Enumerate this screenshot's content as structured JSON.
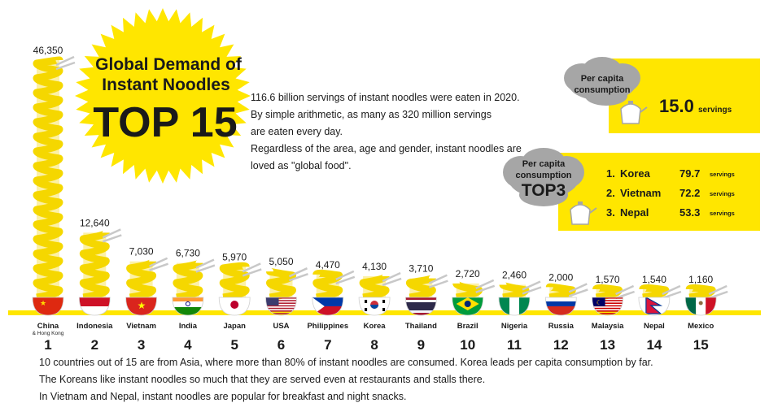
{
  "title": {
    "line1": "Global Demand of",
    "line2": "Instant Noodles",
    "line3": "TOP 15"
  },
  "description": [
    "116.6 billion servings of instant noodles were eaten in 2020.",
    "By simple arithmetic, as many as 320 million servings",
    "are eaten every day.",
    "Regardless of the area, age and gender, instant noodles are",
    "loved as \"global food\"."
  ],
  "per_capita": {
    "label_line1": "Per capita",
    "label_line2": "consumption",
    "value": "15.0",
    "unit": "servings"
  },
  "top3": {
    "label_line1": "Per capita",
    "label_line2": "consumption",
    "label_line3": "TOP3",
    "items": [
      {
        "rank": "1.",
        "country": "Korea",
        "value": "79.7",
        "unit": "servings"
      },
      {
        "rank": "2.",
        "country": "Vietnam",
        "value": "72.2",
        "unit": "servings"
      },
      {
        "rank": "3.",
        "country": "Nepal",
        "value": "53.3",
        "unit": "servings"
      }
    ]
  },
  "footer": [
    "10 countries out of 15 are from Asia, where more than 80% of instant noodles are consumed. Korea leads per capita consumption by far.",
    "The Koreans like instant noodles so much that they are served even at restaurants and stalls there.",
    "In Vietnam and Nepal, instant noodles are popular for breakfast and night snacks."
  ],
  "colors": {
    "yellow": "#ffe600",
    "noodle": "#f5d800",
    "text": "#1a1a1a",
    "cloud": "#a6a6a6"
  },
  "chart_data": {
    "type": "bar",
    "title": "Global Demand of Instant Noodles TOP 15",
    "categories": [
      "China",
      "Indonesia",
      "Vietnam",
      "India",
      "Japan",
      "USA",
      "Philippines",
      "Korea",
      "Thailand",
      "Brazil",
      "Nigeria",
      "Russia",
      "Malaysia",
      "Nepal",
      "Mexico"
    ],
    "category_sublabels": [
      "& Hong Kong",
      "",
      "",
      "",
      "",
      "",
      "",
      "",
      "",
      "",
      "",
      "",
      "",
      "",
      ""
    ],
    "ranks": [
      "1",
      "2",
      "3",
      "4",
      "5",
      "6",
      "7",
      "8",
      "9",
      "10",
      "11",
      "12",
      "13",
      "14",
      "15"
    ],
    "values": [
      46350,
      12640,
      7030,
      6730,
      5970,
      5050,
      4470,
      4130,
      3710,
      2720,
      2460,
      2000,
      1570,
      1540,
      1160
    ],
    "value_labels": [
      "46,350",
      "12,640",
      "7,030",
      "6,730",
      "5,970",
      "5,050",
      "4,470",
      "4,130",
      "3,710",
      "2,720",
      "2,460",
      "2,000",
      "1,570",
      "1,540",
      "1,160"
    ],
    "flags": [
      "china-flag",
      "indonesia-flag",
      "vietnam-flag",
      "india-flag",
      "japan-flag",
      "usa-flag",
      "philippines-flag",
      "korea-flag",
      "thailand-flag",
      "brazil-flag",
      "nigeria-flag",
      "russia-flag",
      "malaysia-flag",
      "nepal-flag",
      "mexico-flag"
    ],
    "ylim": [
      0,
      46350
    ],
    "grid": false,
    "legend": "none"
  }
}
